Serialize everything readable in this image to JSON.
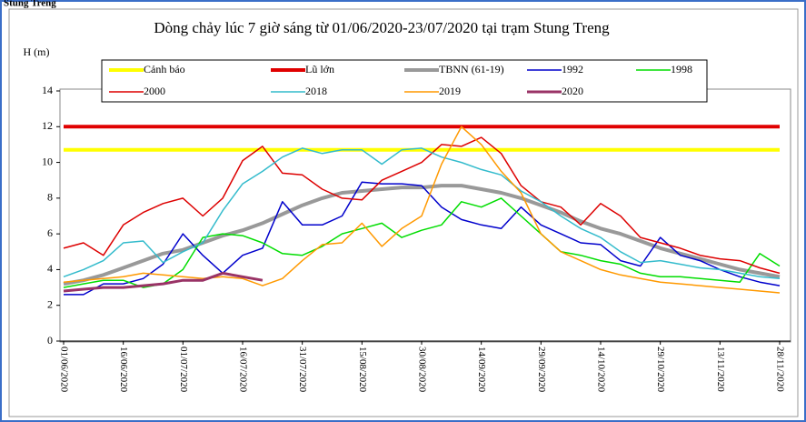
{
  "header": "Stung Treng",
  "chart_data": {
    "type": "line",
    "title": "Dòng chảy lúc 7 giờ sáng từ 01/06/2020-23/07/2020 tại trạm Stung Treng",
    "y_label": "H (m)",
    "categories": [
      "01/06/2020",
      null,
      null,
      "16/06/2020",
      null,
      null,
      "01/07/2020",
      null,
      null,
      "16/07/2020",
      null,
      null,
      "31/07/2020",
      null,
      null,
      "15/08/2020",
      null,
      null,
      "30/08/2020",
      null,
      null,
      "14/09/2020",
      null,
      null,
      "29/09/2020",
      null,
      null,
      "14/10/2020",
      null,
      null,
      "29/10/2020",
      null,
      null,
      "13/11/2020",
      null,
      null,
      "28/11/2020"
    ],
    "ylim": [
      0,
      14
    ],
    "yticks": [
      0,
      2,
      4,
      6,
      8,
      10,
      12,
      14
    ],
    "grid": false,
    "series": [
      {
        "name": "Cảnh báo",
        "color": "#ffff00",
        "line_width": 4,
        "values": [
          10.7,
          10.7,
          10.7,
          10.7,
          10.7,
          10.7,
          10.7,
          10.7,
          10.7,
          10.7,
          10.7,
          10.7,
          10.7,
          10.7,
          10.7,
          10.7,
          10.7,
          10.7,
          10.7,
          10.7,
          10.7,
          10.7,
          10.7,
          10.7,
          10.7,
          10.7,
          10.7,
          10.7,
          10.7,
          10.7,
          10.7,
          10.7,
          10.7,
          10.7,
          10.7,
          10.7,
          10.7
        ]
      },
      {
        "name": "Lũ lớn",
        "color": "#e00000",
        "line_width": 4,
        "values": [
          12,
          12,
          12,
          12,
          12,
          12,
          12,
          12,
          12,
          12,
          12,
          12,
          12,
          12,
          12,
          12,
          12,
          12,
          12,
          12,
          12,
          12,
          12,
          12,
          12,
          12,
          12,
          12,
          12,
          12,
          12,
          12,
          12,
          12,
          12,
          12,
          12
        ]
      },
      {
        "name": "TBNN (61-19)",
        "color": "#999999",
        "line_width": 4,
        "values": [
          3.2,
          3.4,
          3.7,
          4.1,
          4.5,
          4.9,
          5.1,
          5.5,
          5.9,
          6.2,
          6.6,
          7.1,
          7.6,
          8.0,
          8.3,
          8.4,
          8.5,
          8.6,
          8.6,
          8.7,
          8.7,
          8.5,
          8.3,
          8.0,
          7.6,
          7.2,
          6.7,
          6.3,
          6.0,
          5.6,
          5.2,
          4.9,
          4.6,
          4.3,
          4.0,
          3.8,
          3.6
        ]
      },
      {
        "name": "1992",
        "color": "#0000cc",
        "line_width": 1.5,
        "values": [
          2.6,
          2.6,
          3.2,
          3.2,
          3.5,
          4.3,
          6.0,
          4.8,
          3.8,
          4.8,
          5.2,
          7.8,
          6.5,
          6.5,
          7.0,
          8.9,
          8.8,
          8.8,
          8.7,
          7.5,
          6.8,
          6.5,
          6.3,
          7.5,
          6.5,
          6.0,
          5.5,
          5.4,
          4.5,
          4.2,
          5.8,
          4.8,
          4.5,
          4.0,
          3.6,
          3.3,
          3.1
        ]
      },
      {
        "name": "1998",
        "color": "#00dd00",
        "line_width": 1.5,
        "values": [
          3.0,
          3.2,
          3.4,
          3.4,
          3.0,
          3.2,
          4.0,
          5.8,
          6.0,
          5.9,
          5.5,
          4.9,
          4.8,
          5.3,
          6.0,
          6.3,
          6.6,
          5.8,
          6.2,
          6.5,
          7.8,
          7.5,
          8.0,
          7.0,
          6.0,
          5.0,
          4.8,
          4.5,
          4.3,
          3.8,
          3.6,
          3.6,
          3.5,
          3.4,
          3.3,
          4.9,
          4.2
        ]
      },
      {
        "name": "2000",
        "color": "#dd0000",
        "line_width": 1.5,
        "values": [
          5.2,
          5.5,
          4.8,
          6.5,
          7.2,
          7.7,
          8.0,
          7.0,
          8.0,
          10.1,
          10.9,
          9.4,
          9.3,
          8.5,
          8.0,
          7.9,
          9.0,
          9.5,
          10.0,
          11.0,
          10.9,
          11.4,
          10.5,
          8.7,
          7.8,
          7.5,
          6.5,
          7.7,
          7.0,
          5.8,
          5.5,
          5.2,
          4.8,
          4.6,
          4.5,
          4.1,
          3.8
        ]
      },
      {
        "name": "2018",
        "color": "#33bbcc",
        "line_width": 1.5,
        "values": [
          3.6,
          4.0,
          4.5,
          5.5,
          5.6,
          4.4,
          5.0,
          5.5,
          7.3,
          8.8,
          9.5,
          10.3,
          10.8,
          10.5,
          10.7,
          10.7,
          9.9,
          10.7,
          10.8,
          10.3,
          10.0,
          9.6,
          9.3,
          8.4,
          7.8,
          7.0,
          6.3,
          5.8,
          5.0,
          4.4,
          4.5,
          4.3,
          4.1,
          4.0,
          3.8,
          3.6,
          3.5
        ]
      },
      {
        "name": "2019",
        "color": "#ff9900",
        "line_width": 1.5,
        "values": [
          3.3,
          3.4,
          3.5,
          3.6,
          3.8,
          3.7,
          3.6,
          3.5,
          3.6,
          3.5,
          3.1,
          3.5,
          4.5,
          5.4,
          5.5,
          6.6,
          5.3,
          6.3,
          7.0,
          9.9,
          12.0,
          11.0,
          9.5,
          8.3,
          6.0,
          5.0,
          4.5,
          4.0,
          3.7,
          3.5,
          3.3,
          3.2,
          3.1,
          3.0,
          2.9,
          2.8,
          2.7
        ]
      },
      {
        "name": "2020",
        "color": "#993366",
        "line_width": 3,
        "values": [
          2.8,
          2.9,
          3.0,
          3.0,
          3.1,
          3.2,
          3.4,
          3.4,
          3.8,
          3.6,
          3.4,
          null,
          null,
          null,
          null,
          null,
          null,
          null,
          null,
          null,
          null,
          null,
          null,
          null,
          null,
          null,
          null,
          null,
          null,
          null,
          null,
          null,
          null,
          null,
          null,
          null,
          null
        ]
      }
    ]
  }
}
